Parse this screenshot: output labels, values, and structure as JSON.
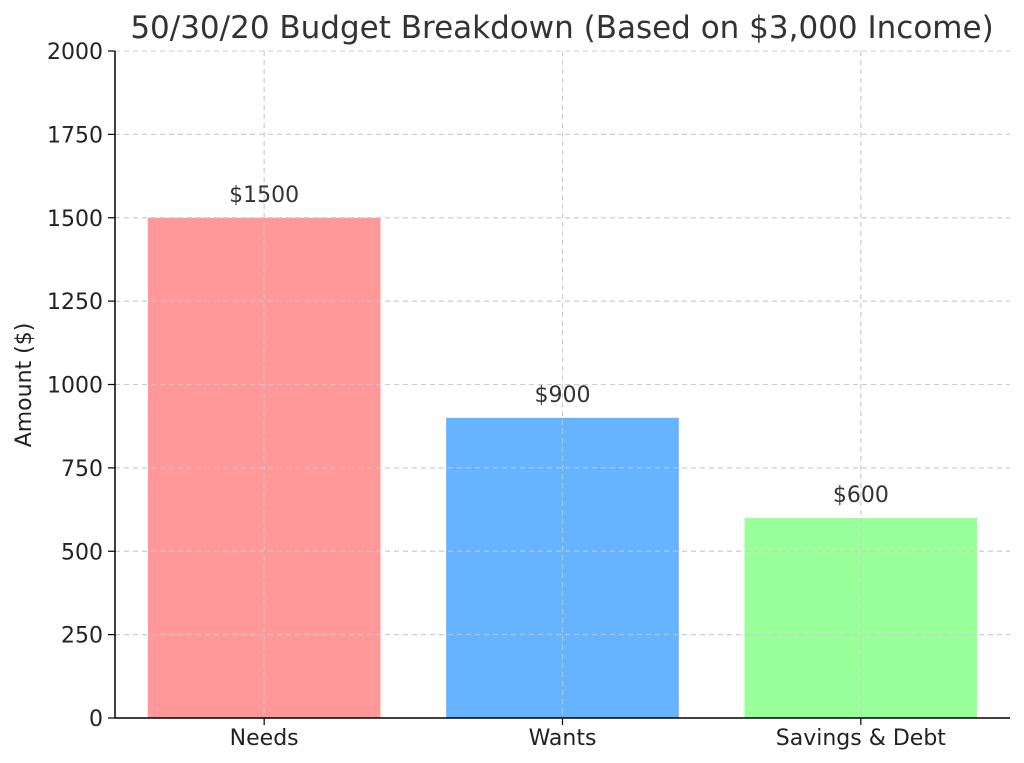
{
  "chart_data": {
    "type": "bar",
    "title": "50/30/20 Budget Breakdown (Based on $3,000 Income)",
    "xlabel": "",
    "ylabel": "Amount ($)",
    "categories": [
      "Needs",
      "Wants",
      "Savings & Debt"
    ],
    "values": [
      1500,
      900,
      600
    ],
    "data_labels": [
      "$1500",
      "$900",
      "$600"
    ],
    "colors": [
      "#ff9999",
      "#66b3ff",
      "#99ff99"
    ],
    "ylim": [
      0,
      2000
    ],
    "yticks": [
      0,
      250,
      500,
      750,
      1000,
      1250,
      1500,
      1750,
      2000
    ],
    "grid": true
  }
}
